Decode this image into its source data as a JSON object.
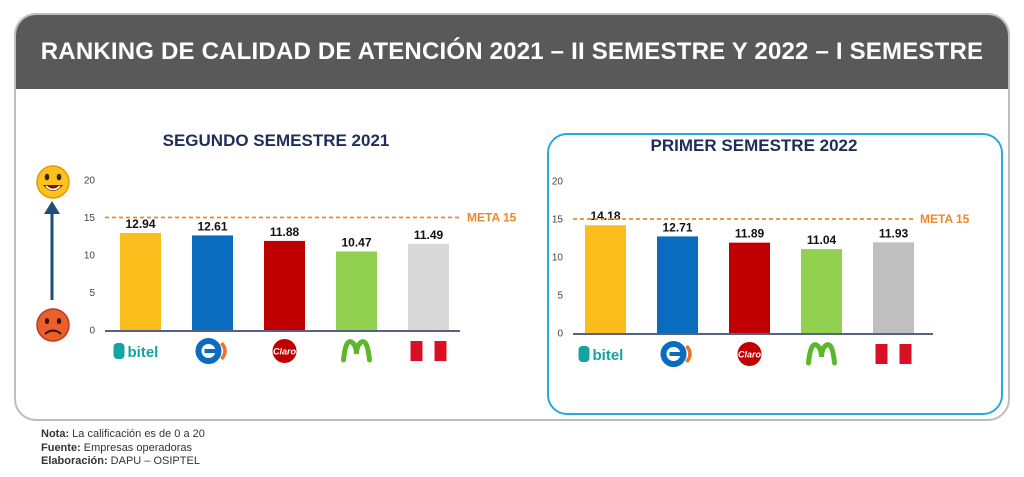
{
  "title": "RANKING DE CALIDAD DE ATENCIÓN 2021 – II SEMESTRE Y 2022 – I SEMESTRE",
  "operators": [
    {
      "name": "bitel",
      "color": "#fbbd1c"
    },
    {
      "name": "Entel",
      "color": "#0a6cbf"
    },
    {
      "name": "Claro",
      "color": "#c00000"
    },
    {
      "name": "Movistar",
      "color": "#92d050"
    },
    {
      "name": "Perú",
      "color": "#d9d9d9"
    }
  ],
  "colors": {
    "meta_line": "#e8892a",
    "axis": "#1f2d5a",
    "scale_arrow": "#1f4e79",
    "panel_border": "#29a9e0"
  },
  "chart_data": [
    {
      "type": "bar",
      "title": "SEGUNDO SEMESTRE 2021",
      "categories": [
        "bitel",
        "Entel",
        "Claro",
        "Movistar",
        "Perú"
      ],
      "values": [
        12.94,
        12.61,
        11.88,
        10.47,
        11.49
      ],
      "value_labels": [
        "12.94",
        "12.61",
        "11.88",
        "10.47",
        "11.49"
      ],
      "bar_colors": [
        "#fbbd1c",
        "#0a6cbf",
        "#c00000",
        "#92d050",
        "#d9d9d9"
      ],
      "ylim": [
        0,
        20
      ],
      "yticks": [
        "0",
        "5",
        "10",
        "15",
        "20"
      ],
      "target_line": {
        "value": 15,
        "label": "META 15"
      },
      "grid": false
    },
    {
      "type": "bar",
      "title": "PRIMER SEMESTRE 2022",
      "categories": [
        "bitel",
        "Entel",
        "Claro",
        "Movistar",
        "Perú"
      ],
      "values": [
        14.18,
        12.71,
        11.89,
        11.04,
        11.93
      ],
      "value_labels": [
        "14.18",
        "12.71",
        "11.89",
        "11.04",
        "11.93"
      ],
      "bar_colors": [
        "#fbbd1c",
        "#0a6cbf",
        "#c00000",
        "#92d050",
        "#bfbfbf"
      ],
      "ylim": [
        0,
        20
      ],
      "yticks": [
        "0",
        "5",
        "10",
        "15",
        "20"
      ],
      "target_line": {
        "value": 15,
        "label": "META 15"
      },
      "grid": false
    }
  ],
  "notes": {
    "nota_label": "Nota:",
    "nota_text": " La calificación es de 0 a 20",
    "fuente_label": "Fuente:",
    "fuente_text": " Empresas operadoras",
    "elab_label": "Elaboración:",
    "elab_text": " DAPU – OSIPTEL"
  }
}
